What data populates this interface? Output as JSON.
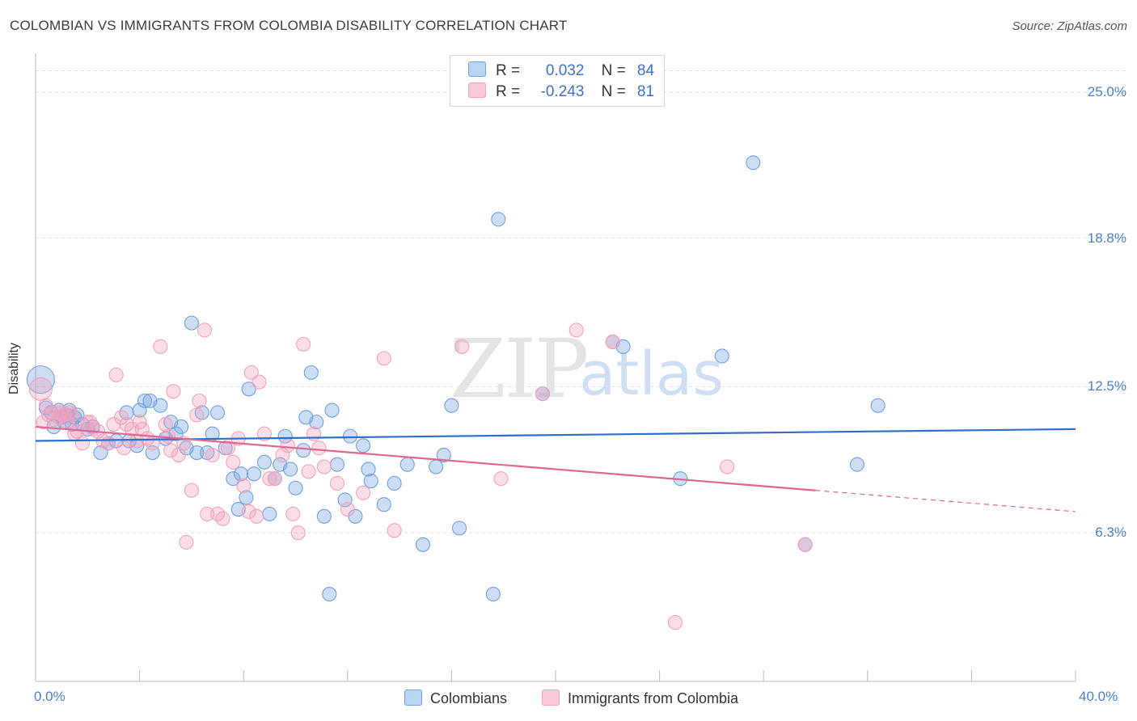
{
  "title": "COLOMBIAN VS IMMIGRANTS FROM COLOMBIA DISABILITY CORRELATION CHART",
  "source": "Source: ZipAtlas.com",
  "watermark": {
    "zip": "ZIP",
    "atlas": "atlas"
  },
  "colors": {
    "blue": "#6fa0e0",
    "blue_line": "#2f6fc9",
    "pink": "#f2a0bb",
    "pink_line": "#e06690"
  },
  "legend": {
    "rows": [
      {
        "r_label": "R =",
        "r_value": "0.032",
        "n_label": "N =",
        "n_value": "84"
      },
      {
        "r_label": "R =",
        "r_value": "-0.243",
        "n_label": "N =",
        "n_value": "81"
      }
    ]
  },
  "bottom_legend": {
    "series1": "Colombians",
    "series2": "Immigrants from Colombia"
  },
  "chart_data": {
    "type": "scatter",
    "title": "COLOMBIAN VS IMMIGRANTS FROM COLOMBIA DISABILITY CORRELATION CHART",
    "xlabel": "",
    "ylabel": "Disability",
    "xlim": [
      0,
      40
    ],
    "ylim": [
      0,
      26.5
    ],
    "x_tick_labels": [
      "0.0%",
      "40.0%"
    ],
    "y_ticks": [
      6.3,
      12.5,
      18.8,
      25.0
    ],
    "y_tick_labels": [
      "6.3%",
      "12.5%",
      "18.8%",
      "25.0%"
    ],
    "series": [
      {
        "name": "Colombians",
        "r": 0.032,
        "n": 84,
        "trend": {
          "x0": 0,
          "y0": 10.2,
          "x1": 40,
          "y1": 10.7
        },
        "points": [
          [
            0.2,
            12.8
          ],
          [
            0.4,
            11.6
          ],
          [
            0.6,
            11.4
          ],
          [
            0.7,
            10.8
          ],
          [
            0.9,
            11.5
          ],
          [
            1.0,
            11.2
          ],
          [
            1.1,
            11.0
          ],
          [
            1.2,
            11.3
          ],
          [
            1.3,
            11.5
          ],
          [
            1.4,
            10.9
          ],
          [
            1.5,
            11.2
          ],
          [
            1.6,
            11.3
          ],
          [
            1.8,
            10.9
          ],
          [
            2.0,
            10.7
          ],
          [
            2.2,
            10.8
          ],
          [
            2.5,
            9.7
          ],
          [
            2.8,
            10.1
          ],
          [
            3.1,
            10.2
          ],
          [
            3.5,
            11.4
          ],
          [
            3.6,
            10.2
          ],
          [
            3.9,
            10.0
          ],
          [
            4.0,
            11.5
          ],
          [
            4.2,
            11.9
          ],
          [
            4.4,
            11.9
          ],
          [
            4.5,
            9.7
          ],
          [
            4.8,
            11.7
          ],
          [
            5.0,
            10.3
          ],
          [
            5.2,
            11.0
          ],
          [
            5.4,
            10.5
          ],
          [
            5.6,
            10.8
          ],
          [
            5.8,
            9.9
          ],
          [
            6.0,
            15.2
          ],
          [
            6.2,
            9.7
          ],
          [
            6.4,
            11.4
          ],
          [
            6.6,
            9.7
          ],
          [
            6.8,
            10.5
          ],
          [
            7.0,
            11.4
          ],
          [
            7.3,
            9.9
          ],
          [
            7.6,
            8.6
          ],
          [
            7.8,
            7.3
          ],
          [
            7.9,
            8.8
          ],
          [
            8.1,
            7.8
          ],
          [
            8.2,
            12.4
          ],
          [
            8.4,
            8.8
          ],
          [
            8.8,
            9.3
          ],
          [
            9.0,
            7.1
          ],
          [
            9.2,
            8.6
          ],
          [
            9.4,
            9.2
          ],
          [
            9.6,
            10.4
          ],
          [
            9.8,
            9.0
          ],
          [
            10.0,
            8.2
          ],
          [
            10.3,
            9.8
          ],
          [
            10.4,
            11.2
          ],
          [
            10.6,
            13.1
          ],
          [
            10.8,
            11.0
          ],
          [
            11.1,
            7.0
          ],
          [
            11.4,
            11.5
          ],
          [
            11.6,
            9.2
          ],
          [
            11.9,
            7.7
          ],
          [
            12.1,
            10.4
          ],
          [
            12.3,
            7.0
          ],
          [
            12.6,
            10.0
          ],
          [
            12.8,
            9.0
          ],
          [
            12.9,
            8.5
          ],
          [
            13.4,
            7.5
          ],
          [
            13.8,
            8.4
          ],
          [
            14.3,
            9.2
          ],
          [
            14.9,
            5.8
          ],
          [
            15.4,
            9.1
          ],
          [
            15.7,
            9.6
          ],
          [
            16.0,
            11.7
          ],
          [
            16.3,
            6.5
          ],
          [
            17.6,
            3.7
          ],
          [
            17.8,
            19.6
          ],
          [
            19.5,
            12.2
          ],
          [
            22.2,
            14.4
          ],
          [
            22.6,
            14.2
          ],
          [
            24.8,
            8.6
          ],
          [
            26.4,
            13.8
          ],
          [
            27.6,
            22.0
          ],
          [
            29.6,
            5.8
          ],
          [
            31.6,
            9.2
          ],
          [
            32.4,
            11.7
          ],
          [
            11.3,
            3.7
          ]
        ]
      },
      {
        "name": "Immigrants from Colombia",
        "r": -0.243,
        "n": 81,
        "trend": {
          "x0": 0,
          "y0": 10.8,
          "x1": 30,
          "y1": 8.1
        },
        "trend_dashed": {
          "x0": 30,
          "y0": 8.1,
          "x1": 40,
          "y1": 7.2
        },
        "points": [
          [
            0.2,
            12.4
          ],
          [
            0.3,
            11.0
          ],
          [
            0.5,
            11.3
          ],
          [
            0.7,
            11.1
          ],
          [
            0.8,
            11.4
          ],
          [
            0.9,
            11.2
          ],
          [
            1.0,
            11.4
          ],
          [
            1.1,
            11.3
          ],
          [
            1.2,
            11.0
          ],
          [
            1.4,
            11.3
          ],
          [
            1.5,
            10.5
          ],
          [
            1.6,
            10.6
          ],
          [
            1.8,
            10.1
          ],
          [
            2.0,
            11.0
          ],
          [
            2.2,
            10.7
          ],
          [
            2.4,
            10.6
          ],
          [
            2.6,
            10.2
          ],
          [
            2.8,
            10.1
          ],
          [
            3.0,
            10.9
          ],
          [
            3.1,
            13.0
          ],
          [
            3.3,
            11.2
          ],
          [
            3.5,
            10.9
          ],
          [
            3.7,
            10.7
          ],
          [
            3.9,
            10.2
          ],
          [
            4.0,
            11.0
          ],
          [
            4.1,
            10.7
          ],
          [
            4.3,
            10.3
          ],
          [
            4.5,
            10.1
          ],
          [
            4.8,
            14.2
          ],
          [
            5.0,
            10.9
          ],
          [
            5.2,
            9.8
          ],
          [
            5.3,
            12.3
          ],
          [
            5.5,
            9.6
          ],
          [
            5.7,
            10.1
          ],
          [
            5.8,
            5.9
          ],
          [
            6.0,
            8.1
          ],
          [
            6.2,
            11.3
          ],
          [
            6.3,
            11.9
          ],
          [
            6.5,
            14.9
          ],
          [
            6.6,
            7.1
          ],
          [
            6.8,
            9.6
          ],
          [
            7.0,
            7.1
          ],
          [
            7.2,
            6.9
          ],
          [
            7.4,
            9.9
          ],
          [
            7.6,
            9.3
          ],
          [
            7.8,
            10.3
          ],
          [
            8.0,
            8.3
          ],
          [
            8.2,
            7.2
          ],
          [
            8.3,
            13.1
          ],
          [
            8.5,
            7.0
          ],
          [
            8.8,
            10.5
          ],
          [
            9.0,
            8.6
          ],
          [
            9.2,
            8.6
          ],
          [
            9.5,
            9.6
          ],
          [
            9.7,
            10.0
          ],
          [
            9.9,
            7.1
          ],
          [
            10.1,
            6.3
          ],
          [
            10.3,
            14.3
          ],
          [
            10.5,
            8.9
          ],
          [
            10.7,
            10.5
          ],
          [
            10.9,
            9.9
          ],
          [
            11.1,
            9.1
          ],
          [
            11.6,
            8.4
          ],
          [
            12.0,
            7.3
          ],
          [
            12.6,
            8.0
          ],
          [
            13.4,
            13.7
          ],
          [
            13.8,
            6.4
          ],
          [
            16.4,
            14.2
          ],
          [
            17.9,
            8.6
          ],
          [
            19.5,
            12.2
          ],
          [
            20.8,
            14.9
          ],
          [
            22.2,
            14.4
          ],
          [
            24.6,
            2.5
          ],
          [
            26.6,
            9.1
          ],
          [
            29.6,
            5.8
          ],
          [
            0.4,
            11.7
          ],
          [
            1.3,
            11.4
          ],
          [
            2.1,
            11.0
          ],
          [
            3.4,
            9.9
          ],
          [
            5.1,
            10.4
          ],
          [
            8.6,
            12.7
          ]
        ]
      }
    ]
  }
}
